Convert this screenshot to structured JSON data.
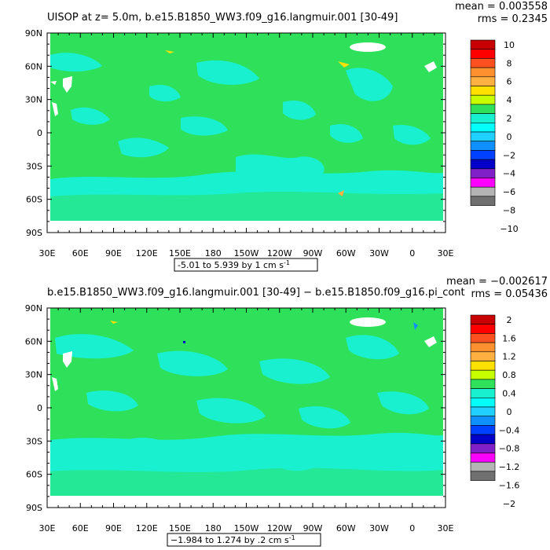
{
  "colors": {
    "ocean_base": "#2fe05a",
    "ocean_patch": "#19f0d0",
    "land": "#ffffff",
    "frame": "#000000"
  },
  "chart_data": [
    {
      "type": "heatmap",
      "title": "UISOP at z=   5.0m, b.e15.B1850_WW3.f09_g16.langmuir.001 [30-49]",
      "stats": {
        "mean": "mean = 0.003558",
        "rms": "rms = 0.2345"
      },
      "range_label": "-5.01 to 5.939 by 1 cm s",
      "range_sup": "-1",
      "x_ticks": [
        "30E",
        "60E",
        "90E",
        "120E",
        "150E",
        "180",
        "150W",
        "120W",
        "90W",
        "60W",
        "30W",
        "0",
        "30E"
      ],
      "y_ticks": [
        "90N",
        "60N",
        "30N",
        "0",
        "30S",
        "60S",
        "90S"
      ],
      "xlim": [
        30,
        390
      ],
      "ylim": [
        -90,
        90
      ],
      "colorbar": {
        "labels": [
          "10",
          "8",
          "6",
          "4",
          "2",
          "0",
          "−2",
          "−4",
          "−6",
          "−8",
          "−10"
        ],
        "colors": [
          "#c80000",
          "#ff0000",
          "#ff5020",
          "#ff9030",
          "#ffb040",
          "#ffe000",
          "#c8ff00",
          "#2fe05a",
          "#19f0d0",
          "#00ffff",
          "#20d0ff",
          "#1090ff",
          "#0040ff",
          "#0000c8",
          "#8020c8",
          "#ff00ff",
          "#b4b4b4",
          "#707070"
        ]
      }
    },
    {
      "type": "heatmap",
      "title": "b.e15.B1850_WW3.f09_g16.langmuir.001 [30-49] − b.e15.B1850.f09_g16.pi_cont",
      "stats": {
        "mean": "mean = −0.002617",
        "rms": "rms = 0.05436"
      },
      "range_label": "−1.984 to 1.274 by .2 cm s",
      "range_sup": "-1",
      "x_ticks": [
        "30E",
        "60E",
        "90E",
        "120E",
        "150E",
        "180",
        "150W",
        "120W",
        "90W",
        "60W",
        "30W",
        "0",
        "30E"
      ],
      "y_ticks": [
        "90N",
        "60N",
        "30N",
        "0",
        "30S",
        "60S",
        "90S"
      ],
      "xlim": [
        30,
        390
      ],
      "ylim": [
        -90,
        90
      ],
      "colorbar": {
        "labels": [
          "2",
          "1.6",
          "1.2",
          "0.8",
          "0.4",
          "0",
          "−0.4",
          "−0.8",
          "−1.2",
          "−1.6",
          "−2"
        ],
        "colors": [
          "#c80000",
          "#ff0000",
          "#ff5020",
          "#ff9030",
          "#ffb040",
          "#ffe000",
          "#c8ff00",
          "#2fe05a",
          "#19f0d0",
          "#00ffff",
          "#20d0ff",
          "#1090ff",
          "#0040ff",
          "#0000c8",
          "#8020c8",
          "#ff00ff",
          "#b4b4b4",
          "#707070"
        ]
      }
    }
  ]
}
